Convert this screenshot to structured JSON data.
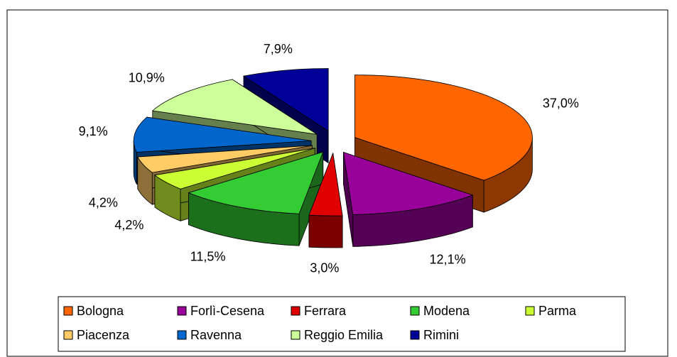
{
  "chart_data": {
    "type": "pie3d",
    "categories": [
      "Bologna",
      "Forlì-Cesena",
      "Ferrara",
      "Modena",
      "Parma",
      "Piacenza",
      "Ravenna",
      "Reggio Emilia",
      "Rimini"
    ],
    "values": [
      37.0,
      12.1,
      3.0,
      11.5,
      4.2,
      4.2,
      9.1,
      10.9,
      7.9
    ],
    "value_labels": [
      "37,0%",
      "12,1%",
      "3,0%",
      "11,5%",
      "4,2%",
      "4,2%",
      "9,1%",
      "10,9%",
      "7,9%"
    ],
    "colors": [
      "#ff6600",
      "#990099",
      "#e00000",
      "#33cc33",
      "#ccff33",
      "#ffcc66",
      "#0066cc",
      "#ccff99",
      "#000099"
    ],
    "legend": "bottom"
  }
}
